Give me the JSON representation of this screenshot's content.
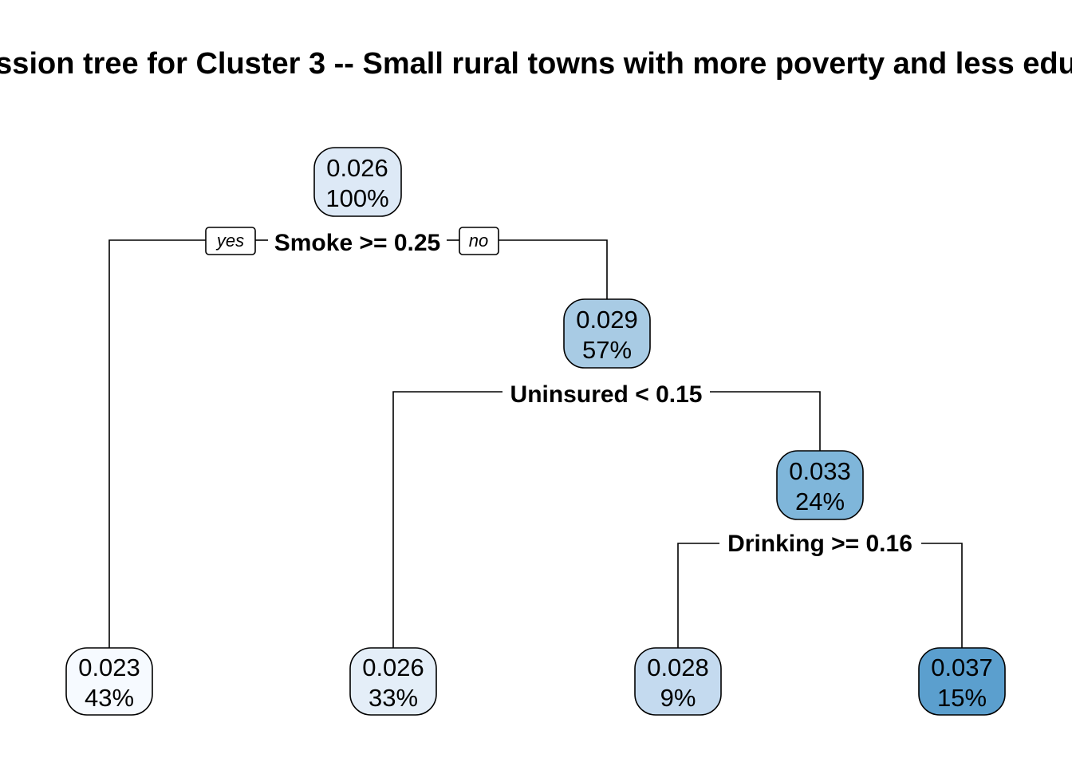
{
  "title": "ssion tree for Cluster 3 -- Small rural towns with more poverty and less edu",
  "branch_tags": {
    "yes": "yes",
    "no": "no"
  },
  "nodes": [
    {
      "id": "root",
      "value": "0.026",
      "percent": "100%",
      "fill": "#dde9f6"
    },
    {
      "id": "n3",
      "value": "0.029",
      "percent": "57%",
      "fill": "#a8cbe4"
    },
    {
      "id": "n7",
      "value": "0.033",
      "percent": "24%",
      "fill": "#7fb6da"
    },
    {
      "id": "leaf2",
      "value": "0.023",
      "percent": "43%",
      "fill": "#f6faff"
    },
    {
      "id": "leaf6",
      "value": "0.026",
      "percent": "33%",
      "fill": "#e4eef8"
    },
    {
      "id": "leaf14",
      "value": "0.028",
      "percent": "9%",
      "fill": "#c4daef"
    },
    {
      "id": "leaf15",
      "value": "0.037",
      "percent": "15%",
      "fill": "#5b9fce"
    }
  ],
  "splits": [
    {
      "id": "root",
      "label": "Smoke >= 0.25"
    },
    {
      "id": "n3",
      "label": "Uninsured < 0.15"
    },
    {
      "id": "n7",
      "label": "Drinking >= 0.16"
    }
  ]
}
